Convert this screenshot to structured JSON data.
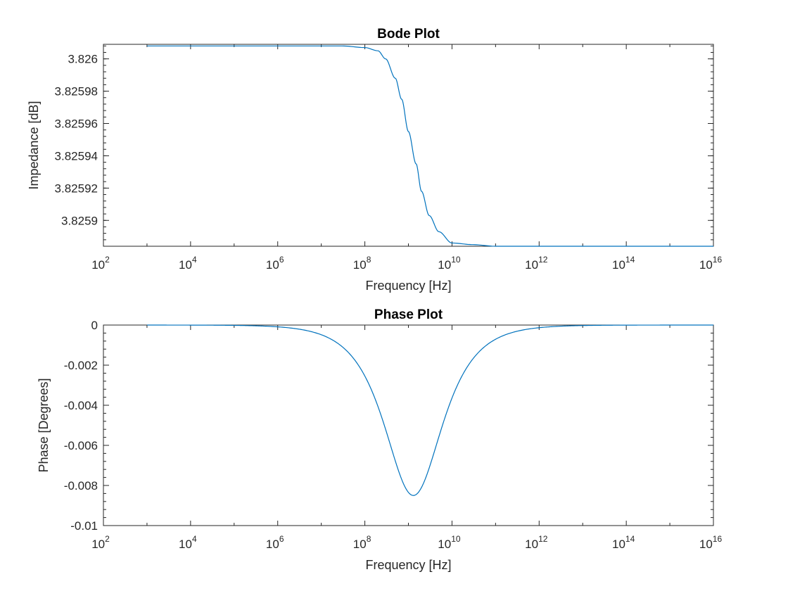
{
  "chart_data": [
    {
      "type": "line",
      "title": "Bode Plot",
      "xlabel": "Frequency [Hz]",
      "ylabel": "Impedance [dB]",
      "xscale": "log",
      "xlim": [
        100,
        10000000000000000
      ],
      "ylim": [
        3.825884,
        3.826009
      ],
      "x_ticks": [
        {
          "base": "10",
          "exp": "2",
          "value": 100
        },
        {
          "base": "10",
          "exp": "4",
          "value": 10000
        },
        {
          "base": "10",
          "exp": "6",
          "value": 1000000
        },
        {
          "base": "10",
          "exp": "8",
          "value": 100000000
        },
        {
          "base": "10",
          "exp": "10",
          "value": 10000000000
        },
        {
          "base": "10",
          "exp": "12",
          "value": 1000000000000
        },
        {
          "base": "10",
          "exp": "14",
          "value": 100000000000000
        },
        {
          "base": "10",
          "exp": "16",
          "value": 10000000000000000
        }
      ],
      "y_ticks": [
        {
          "label": "3.826",
          "value": 3.826
        },
        {
          "label": "3.82598",
          "value": 3.82598
        },
        {
          "label": "3.82596",
          "value": 3.82596
        },
        {
          "label": "3.82594",
          "value": 3.82594
        },
        {
          "label": "3.82592",
          "value": 3.82592
        },
        {
          "label": "3.8259",
          "value": 3.8259
        }
      ],
      "grid": false,
      "line_color": "#0072bd",
      "series": [
        {
          "x": [
            1000,
            1000000,
            10000000,
            30000000,
            100000000,
            200000000,
            300000000,
            500000000,
            700000000,
            1000000000,
            1500000000,
            2000000000,
            3000000000,
            5000000000,
            10000000000,
            30000000000,
            100000000000,
            10000000000000000
          ],
          "y": [
            3.826008,
            3.826008,
            3.826008,
            3.826008,
            3.826007,
            3.826005,
            3.826,
            3.825988,
            3.825975,
            3.825955,
            3.825935,
            3.825918,
            3.825903,
            3.825893,
            3.825886,
            3.825885,
            3.825884,
            3.825884
          ]
        }
      ]
    },
    {
      "type": "line",
      "title": "Phase Plot",
      "xlabel": "Frequency [Hz]",
      "ylabel": "Phase [Degrees]",
      "xscale": "log",
      "xlim": [
        100,
        10000000000000000
      ],
      "ylim": [
        -0.01,
        0
      ],
      "x_ticks": [
        {
          "base": "10",
          "exp": "2",
          "value": 100
        },
        {
          "base": "10",
          "exp": "4",
          "value": 10000
        },
        {
          "base": "10",
          "exp": "6",
          "value": 1000000
        },
        {
          "base": "10",
          "exp": "8",
          "value": 100000000
        },
        {
          "base": "10",
          "exp": "10",
          "value": 10000000000
        },
        {
          "base": "10",
          "exp": "12",
          "value": 1000000000000
        },
        {
          "base": "10",
          "exp": "14",
          "value": 100000000000000
        },
        {
          "base": "10",
          "exp": "16",
          "value": 10000000000000000
        }
      ],
      "y_ticks": [
        {
          "label": "0",
          "value": 0
        },
        {
          "label": "-0.002",
          "value": -0.002
        },
        {
          "label": "-0.004",
          "value": -0.004
        },
        {
          "label": "-0.006",
          "value": -0.006
        },
        {
          "label": "-0.008",
          "value": -0.008
        },
        {
          "label": "-0.01",
          "value": -0.01
        }
      ],
      "grid": false,
      "line_color": "#0072bd",
      "series": [
        {
          "peak_x": 1300000000,
          "peak_y": -0.0085,
          "peak_log_halfwidth": 0.95
        }
      ]
    }
  ]
}
